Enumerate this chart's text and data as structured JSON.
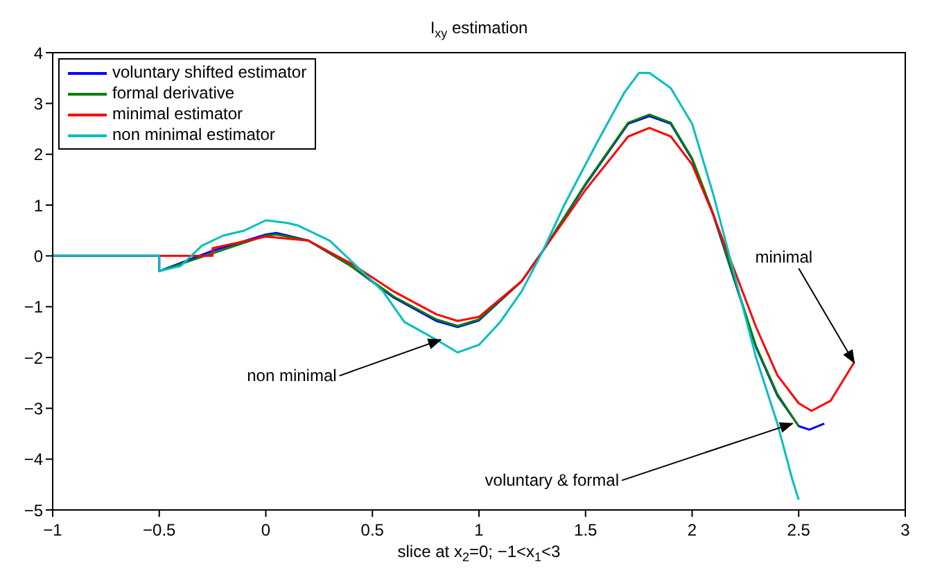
{
  "chart_data": {
    "type": "line",
    "title": "I$_{xy}$ estimation",
    "xlabel": "slice at x$_{2}$=0; −1<x$_{1}$<3",
    "xlim": [
      -1,
      3
    ],
    "xticks": [
      -1,
      -0.5,
      0,
      0.5,
      1,
      1.5,
      2,
      2.5,
      3
    ],
    "ylim": [
      -5,
      4
    ],
    "yticks": [
      -5,
      -4,
      -3,
      -2,
      -1,
      0,
      1,
      2,
      3,
      4
    ],
    "legend": "top left",
    "grid": false,
    "marker": "none",
    "line_style": "solid",
    "series": [
      {
        "name": "voluntary shifted estimator",
        "color": "#0000ff",
        "x": [
          -1,
          -0.5,
          -0.5,
          -0.25,
          0,
          0.05,
          0.2,
          0.4,
          0.6,
          0.8,
          0.9,
          1.0,
          1.2,
          1.3,
          1.5,
          1.7,
          1.8,
          1.9,
          2.0,
          2.1,
          2.2,
          2.3,
          2.4,
          2.5,
          2.55,
          2.62
        ],
        "values": [
          0,
          0,
          -0.3,
          0.1,
          0.42,
          0.45,
          0.3,
          -0.2,
          -0.82,
          -1.28,
          -1.4,
          -1.27,
          -0.5,
          0.1,
          1.4,
          2.6,
          2.75,
          2.6,
          1.9,
          0.8,
          -0.5,
          -1.8,
          -2.75,
          -3.35,
          -3.42,
          -3.3
        ]
      },
      {
        "name": "formal derivative",
        "color": "#008000",
        "x": [
          -0.5,
          -0.25,
          0,
          0.05,
          0.2,
          0.4,
          0.6,
          0.8,
          0.9,
          1.0,
          1.2,
          1.3,
          1.5,
          1.7,
          1.8,
          1.9,
          2.0,
          2.1,
          2.2,
          2.3,
          2.4,
          2.5
        ],
        "values": [
          -0.3,
          0.05,
          0.4,
          0.42,
          0.3,
          -0.2,
          -0.8,
          -1.25,
          -1.38,
          -1.25,
          -0.5,
          0.1,
          1.42,
          2.62,
          2.78,
          2.62,
          1.92,
          0.82,
          -0.48,
          -1.78,
          -2.72,
          -3.35
        ]
      },
      {
        "name": "minimal estimator",
        "color": "#ff0000",
        "x": [
          -1,
          -0.25,
          -0.25,
          0,
          0.2,
          0.4,
          0.6,
          0.8,
          0.9,
          1.0,
          1.2,
          1.3,
          1.5,
          1.7,
          1.8,
          1.9,
          2.0,
          2.1,
          2.2,
          2.3,
          2.4,
          2.5,
          2.56,
          2.65,
          2.76
        ],
        "values": [
          0,
          0,
          0.15,
          0.38,
          0.3,
          -0.15,
          -0.7,
          -1.15,
          -1.28,
          -1.2,
          -0.5,
          0.1,
          1.3,
          2.35,
          2.52,
          2.35,
          1.8,
          0.8,
          -0.3,
          -1.4,
          -2.35,
          -2.9,
          -3.05,
          -2.85,
          -2.1
        ]
      },
      {
        "name": "non minimal estimator",
        "color": "#00bfbf",
        "x": [
          -1,
          -0.5,
          -0.5,
          -0.4,
          -0.3,
          -0.2,
          -0.1,
          0,
          0.1,
          0.15,
          0.3,
          0.4,
          0.55,
          0.65,
          0.8,
          0.9,
          1.0,
          1.1,
          1.2,
          1.3,
          1.4,
          1.55,
          1.68,
          1.75,
          1.8,
          1.9,
          2.0,
          2.1,
          2.2,
          2.3,
          2.4,
          2.47,
          2.5
        ],
        "values": [
          0,
          0,
          -0.3,
          -0.2,
          0.2,
          0.4,
          0.5,
          0.7,
          0.65,
          0.6,
          0.3,
          -0.1,
          -0.7,
          -1.3,
          -1.65,
          -1.9,
          -1.75,
          -1.3,
          -0.7,
          0.1,
          1.0,
          2.2,
          3.2,
          3.6,
          3.6,
          3.3,
          2.6,
          1.2,
          -0.4,
          -2.0,
          -3.3,
          -4.4,
          -4.8
        ]
      }
    ],
    "annotations": [
      {
        "text": "non minimal",
        "x": 0.82,
        "y": -1.65
      },
      {
        "text": "minimal",
        "x": 2.76,
        "y": -2.1
      },
      {
        "text": "voluntary & formal",
        "x": 2.47,
        "y": -3.3
      }
    ]
  }
}
